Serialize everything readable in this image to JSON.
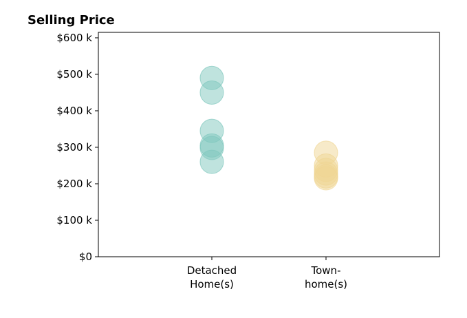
{
  "chart_data": {
    "type": "scatter",
    "title": "Selling Price",
    "xlabel": "",
    "ylabel": "",
    "categories": [
      {
        "lines": [
          "Detached",
          "Home(s)"
        ]
      },
      {
        "lines": [
          "Town-",
          "home(s)"
        ]
      }
    ],
    "ylim": [
      0,
      615000
    ],
    "yticks": [
      {
        "value": 0,
        "label": "$0"
      },
      {
        "value": 100000,
        "label": "$100 k"
      },
      {
        "value": 200000,
        "label": "$200 k"
      },
      {
        "value": 300000,
        "label": "$300 k"
      },
      {
        "value": 400000,
        "label": "$400 k"
      },
      {
        "value": 500000,
        "label": "$500 k"
      },
      {
        "value": 600000,
        "label": "$600 k"
      }
    ],
    "grid": false,
    "legend": "none",
    "series": [
      {
        "category": "Detached Home(s)",
        "color": "#7fc8bd",
        "values": [
          490000,
          450000,
          345000,
          305000,
          298000,
          260000
        ]
      },
      {
        "category": "Town-home(s)",
        "color": "#f0d694",
        "values": [
          285000,
          250000,
          238000,
          228000,
          220000,
          215000
        ]
      }
    ]
  }
}
